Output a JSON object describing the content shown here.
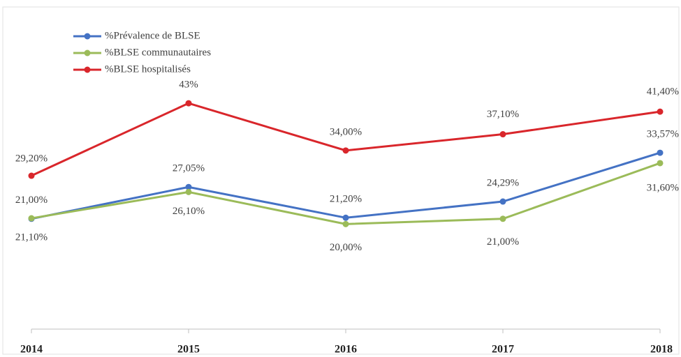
{
  "chart_data": {
    "type": "line",
    "categories": [
      "2014",
      "2015",
      "2016",
      "2017",
      "2018"
    ],
    "series": [
      {
        "name": "%Prévalence de BLSE",
        "color": "#4472c4",
        "values": [
          21.0,
          27.05,
          21.2,
          24.29,
          33.57
        ],
        "value_labels": [
          "21,00%",
          "27,05%",
          "21,20%",
          "24,29%",
          "33,57%"
        ]
      },
      {
        "name": "%BLSE communautaires",
        "color": "#9bbb59",
        "values": [
          21.1,
          26.1,
          20.0,
          21.0,
          31.6
        ],
        "value_labels": [
          "21,10%",
          "26,10%",
          "20,00%",
          "21,00%",
          "31,60%"
        ]
      },
      {
        "name": "%BLSE hospitalisés",
        "color": "#d9262b",
        "values": [
          29.2,
          43,
          34.0,
          37.1,
          41.4
        ],
        "value_labels": [
          "29,20%",
          "43%",
          "34,00%",
          "37,10%",
          "41,40%"
        ]
      }
    ],
    "ylim": [
      0,
      60
    ],
    "legend": "top-left"
  }
}
